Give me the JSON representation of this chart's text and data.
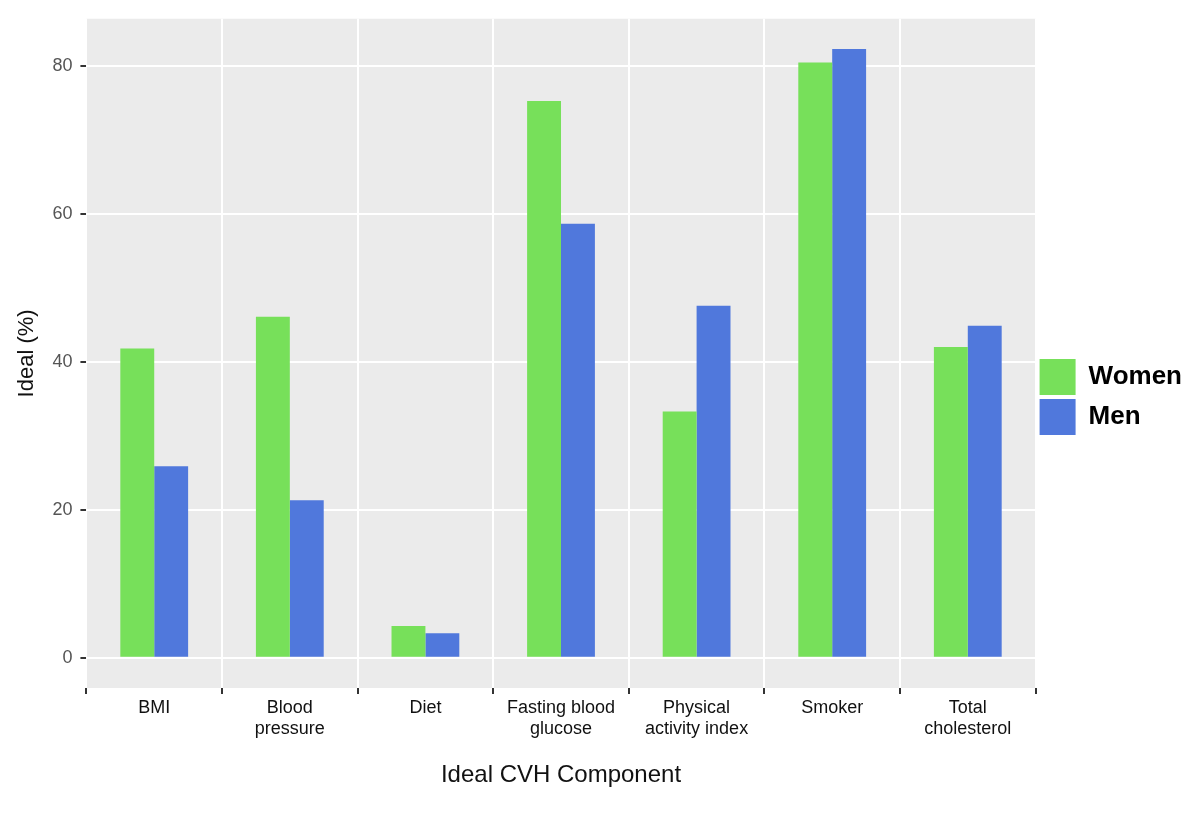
{
  "chart_data": {
    "type": "bar",
    "xlabel": "Ideal CVH Component",
    "ylabel": "Ideal (%)",
    "categories": [
      "BMI",
      "Blood\npressure",
      "Diet",
      "Fasting blood\nglucose",
      "Physical\nactivity index",
      "Smoker",
      "Total\ncholesterol"
    ],
    "series": [
      {
        "name": "Women",
        "color": "#77e05a",
        "values": [
          41.8,
          46.1,
          4.3,
          75.3,
          33.3,
          80.5,
          42.0
        ]
      },
      {
        "name": "Men",
        "color": "#5078dc",
        "values": [
          25.9,
          21.3,
          3.3,
          58.7,
          47.6,
          82.3,
          44.9
        ]
      }
    ],
    "ylim": [
      -4.1,
      86.4
    ],
    "yticks": [
      0,
      20,
      40,
      60,
      80
    ],
    "grid": true,
    "legend": "right"
  }
}
